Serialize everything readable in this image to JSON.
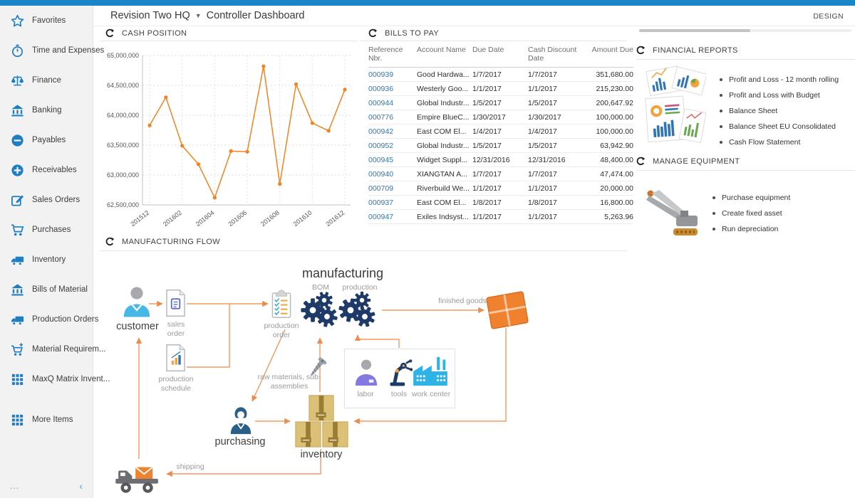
{
  "colors": {
    "topbar": "#1a86c8",
    "sidebar_icon": "#1f7dc2",
    "chart_line": "#f58220",
    "flow_arrow": "#f0985c",
    "gear": "#1e3a68"
  },
  "header": {
    "company": "Revision Two HQ",
    "page": "Controller Dashboard",
    "design": "DESIGN"
  },
  "sidebar": {
    "items": [
      {
        "label": "Favorites",
        "icon": "star"
      },
      {
        "label": "Time and Expenses",
        "icon": "stopwatch"
      },
      {
        "label": "Finance",
        "icon": "scales"
      },
      {
        "label": "Banking",
        "icon": "bank"
      },
      {
        "label": "Payables",
        "icon": "minus-circle"
      },
      {
        "label": "Receivables",
        "icon": "plus-circle"
      },
      {
        "label": "Sales Orders",
        "icon": "edit"
      },
      {
        "label": "Purchases",
        "icon": "cart"
      },
      {
        "label": "Inventory",
        "icon": "truck"
      },
      {
        "label": "Bills of Material",
        "icon": "bank"
      },
      {
        "label": "Production Orders",
        "icon": "truck"
      },
      {
        "label": "Material Requirem...",
        "icon": "cart-plus"
      },
      {
        "label": "MaxQ Matrix Invent...",
        "icon": "grid"
      },
      {
        "label": "More Items",
        "icon": "grid",
        "gap_before": true
      }
    ],
    "footer": {
      "more": "...",
      "collapse": "‹"
    }
  },
  "cash_position": {
    "title": "CASH POSITION"
  },
  "chart_data": {
    "type": "line",
    "title": "CASH POSITION",
    "x": [
      "201512",
      "201601",
      "201602",
      "201603",
      "201604",
      "201605",
      "201606",
      "201607",
      "201608",
      "201609",
      "201610",
      "201611",
      "201612"
    ],
    "values": [
      63830000,
      64300000,
      63490000,
      63180000,
      62620000,
      63400000,
      63390000,
      64820000,
      62850000,
      64520000,
      63870000,
      63740000,
      64430000
    ],
    "x_ticks": [
      {
        "i": 0,
        "label": "201512"
      },
      {
        "i": 2,
        "label": "201602"
      },
      {
        "i": 4,
        "label": "201604"
      },
      {
        "i": 6,
        "label": "201606"
      },
      {
        "i": 8,
        "label": "201608"
      },
      {
        "i": 10,
        "label": "201610"
      },
      {
        "i": 12,
        "label": "201612"
      }
    ],
    "y_ticks": [
      62500000,
      63000000,
      63500000,
      64000000,
      64500000,
      65000000
    ],
    "ylim": [
      62500000,
      65000000
    ],
    "xlabel": "",
    "ylabel": "",
    "grid": true,
    "legend": false
  },
  "bills_to_pay": {
    "title": "BILLS TO PAY",
    "columns": [
      "Reference Nbr.",
      "Account Name",
      "Due Date",
      "Cash Discount Date",
      "Amount Due"
    ],
    "rows": [
      [
        "000939",
        "Good Hardwa...",
        "1/7/2017",
        "1/7/2017",
        "351,680.00"
      ],
      [
        "000936",
        "Westerly Goo...",
        "1/1/2017",
        "1/1/2017",
        "215,230.00"
      ],
      [
        "000944",
        "Global Industr...",
        "1/5/2017",
        "1/5/2017",
        "200,647.92"
      ],
      [
        "000776",
        "Empire BlueC...",
        "1/30/2017",
        "1/30/2017",
        "100,000.00"
      ],
      [
        "000942",
        "East COM El...",
        "1/4/2017",
        "1/4/2017",
        "100,000.00"
      ],
      [
        "000952",
        "Global Industr...",
        "1/5/2017",
        "1/5/2017",
        "63,942.90"
      ],
      [
        "000945",
        "Widget Suppl...",
        "12/31/2016",
        "12/31/2016",
        "48,400.00"
      ],
      [
        "000940",
        "XIANGTAN A...",
        "1/7/2017",
        "1/7/2017",
        "47,474.00"
      ],
      [
        "000709",
        "Riverbuild We...",
        "1/1/2017",
        "1/1/2017",
        "20,000.00"
      ],
      [
        "000937",
        "East COM El...",
        "1/8/2017",
        "1/8/2017",
        "16,800.00"
      ],
      [
        "000947",
        "Exiles Indsyst...",
        "1/1/2017",
        "1/1/2017",
        "5,263.96"
      ]
    ]
  },
  "financial_reports": {
    "title": "FINANCIAL REPORTS",
    "links": [
      "Profit and Loss - 12 month rolling",
      "Profit and Loss with Budget",
      "Balance Sheet",
      "Balance Sheet EU Consolidated",
      "Cash Flow Statement"
    ]
  },
  "manage_equipment": {
    "title": "MANAGE EQUIPMENT",
    "links": [
      "Purchase equipment",
      "Create fixed asset",
      "Run depreciation"
    ]
  },
  "manufacturing_flow": {
    "title": "MANUFACTURING FLOW",
    "labels": {
      "manufacturing": "manufacturing",
      "bom": "BOM",
      "production": "production",
      "customer": "customer",
      "sales_order": "sales order",
      "production_schedule": "production schedule",
      "production_order": "production order",
      "labor": "labor",
      "tools": "tools",
      "work_center": "work center",
      "finished_goods": "finished goods",
      "raw_materials": "raw materials, sub-assemblies",
      "inventory": "inventory",
      "purchasing": "purchasing",
      "shipping": "shipping"
    }
  }
}
